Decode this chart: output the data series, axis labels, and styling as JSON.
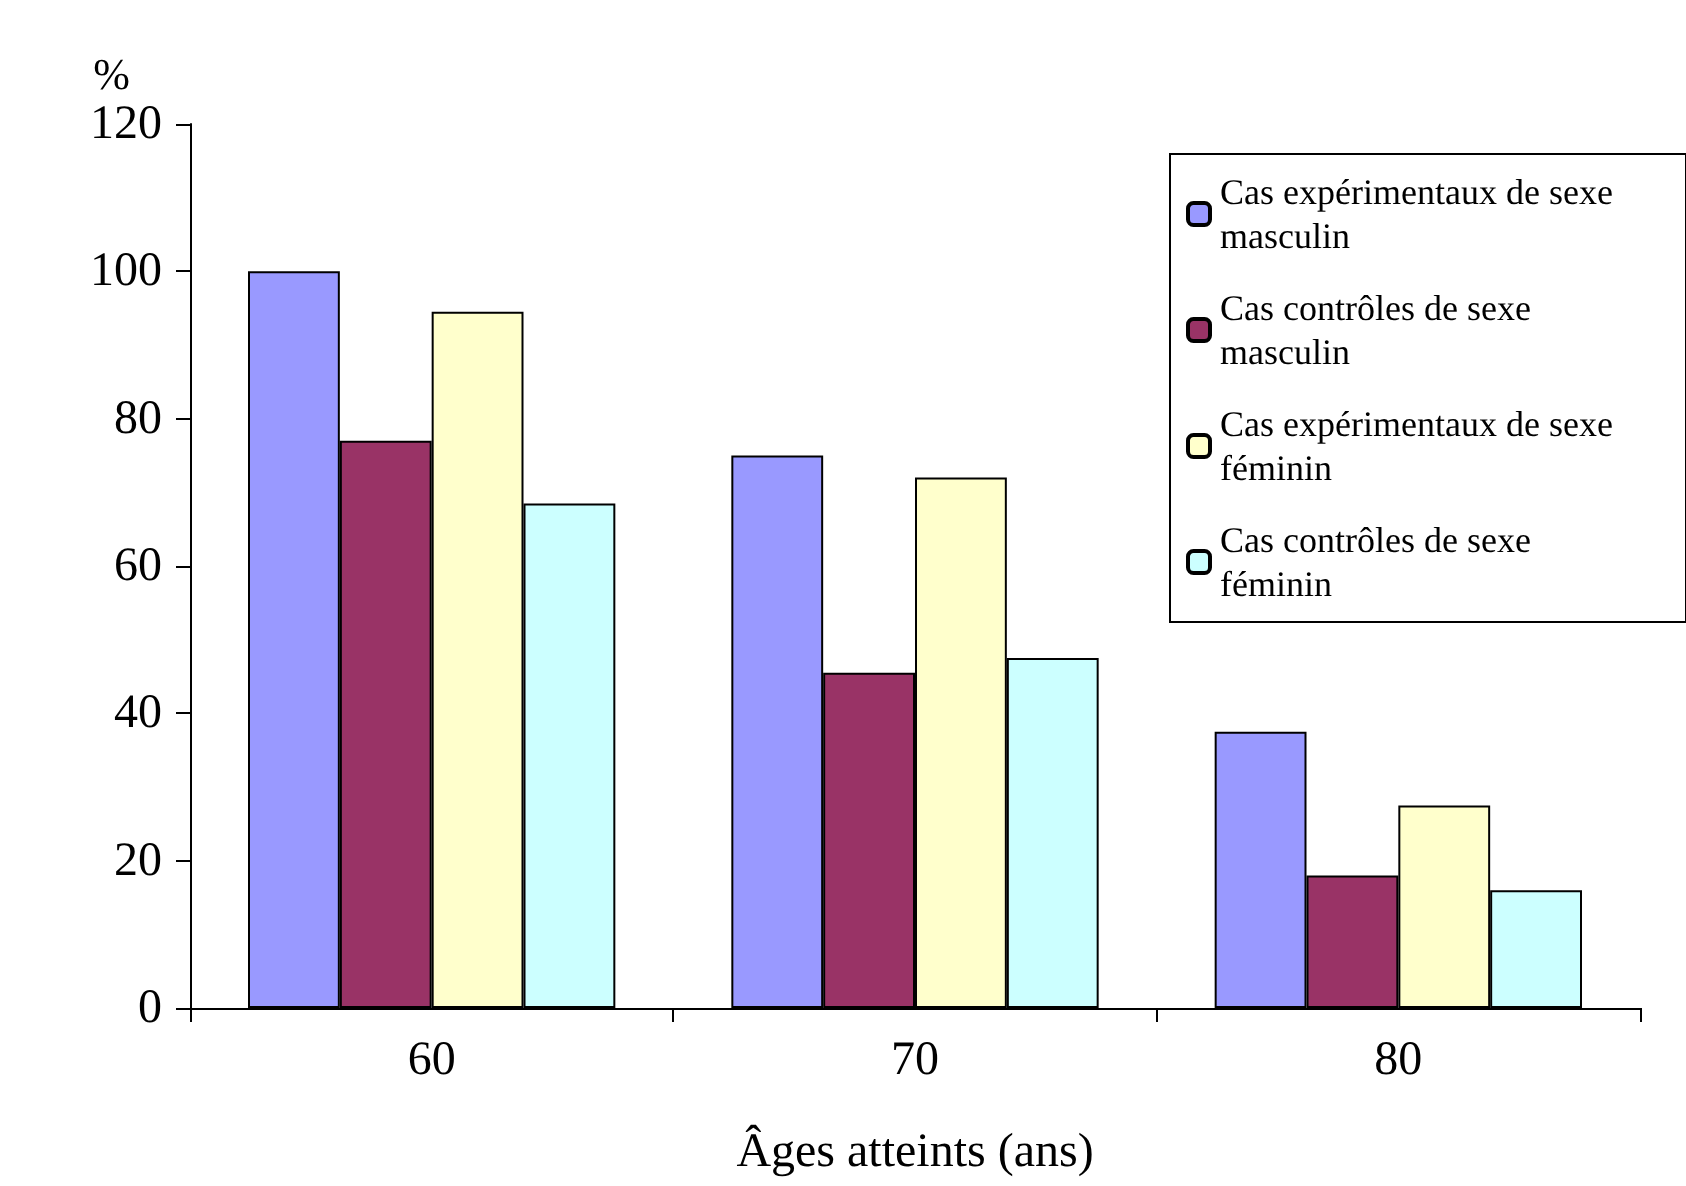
{
  "chart_data": {
    "type": "bar",
    "xlabel": "Âges atteints (ans)",
    "ylabel": "%",
    "categories": [
      "60",
      "70",
      "80"
    ],
    "series": [
      {
        "name": "Cas expérimentaux de sexe masculin",
        "color": "#9999ff",
        "values": [
          100,
          75,
          37.5
        ]
      },
      {
        "name": "Cas contrôles de sexe masculin",
        "color": "#993366",
        "values": [
          77,
          45.5,
          18
        ]
      },
      {
        "name": "Cas expérimentaux de sexe féminin",
        "color": "#ffffcc",
        "values": [
          94.5,
          72,
          27.5
        ]
      },
      {
        "name": "Cas contrôles de sexe féminin",
        "color": "#ccffff",
        "values": [
          68.5,
          47.5,
          16
        ]
      }
    ],
    "ylim": [
      0,
      120
    ],
    "yticks": [
      0,
      20,
      40,
      60,
      80,
      100,
      120
    ],
    "grid": false,
    "legend": "top right"
  }
}
